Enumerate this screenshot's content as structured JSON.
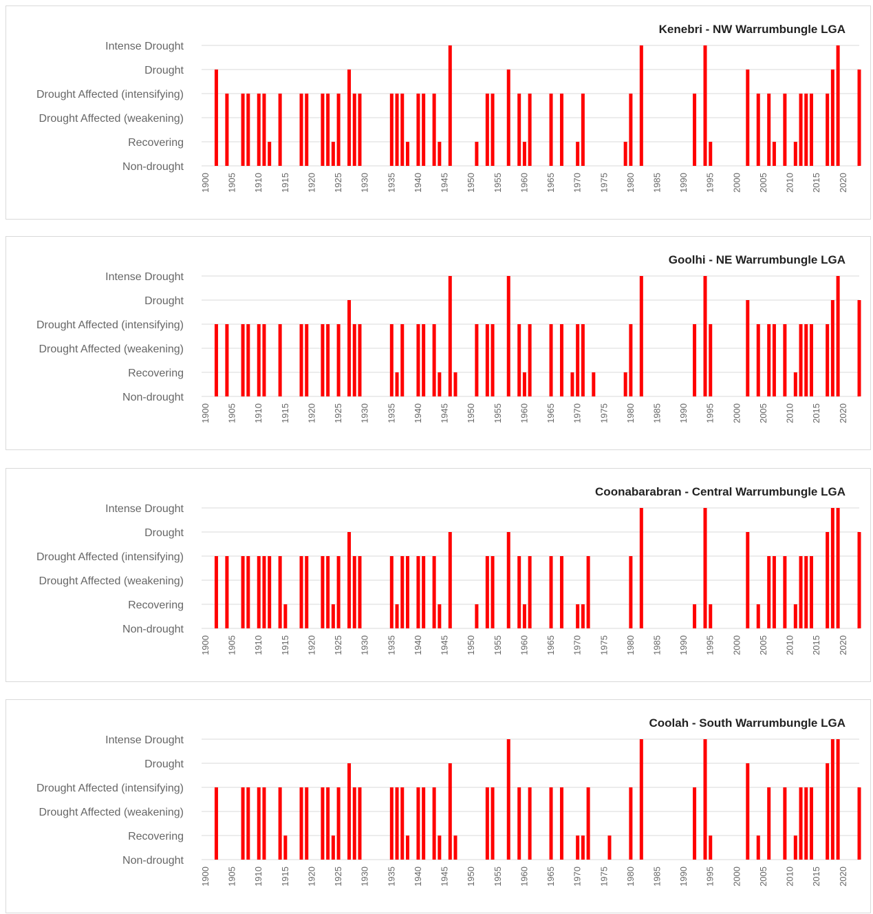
{
  "colors": {
    "bar": "#ff0000",
    "grid": "#d9d9d9",
    "text": "#666666",
    "title": "#222222"
  },
  "chart_data": [
    {
      "type": "bar",
      "title": "Kenebri - NW Warrumbungle LGA",
      "y_categories": [
        "Non-drought",
        "Recovering",
        "Drought Affected (weakening)",
        "Drought Affected (intensifying)",
        "Drought",
        "Intense Drought"
      ],
      "x_ticks": [
        1900,
        1905,
        1910,
        1915,
        1920,
        1925,
        1930,
        1935,
        1940,
        1945,
        1950,
        1955,
        1960,
        1965,
        1970,
        1975,
        1980,
        1985,
        1990,
        1995,
        2000,
        2005,
        2010,
        2015,
        2020
      ],
      "xlim": [
        1900,
        2023
      ],
      "grid": true,
      "points": [
        [
          1902,
          4
        ],
        [
          1904,
          3
        ],
        [
          1907,
          3
        ],
        [
          1908,
          3
        ],
        [
          1910,
          3
        ],
        [
          1911,
          3
        ],
        [
          1912,
          1
        ],
        [
          1914,
          3
        ],
        [
          1918,
          3
        ],
        [
          1919,
          3
        ],
        [
          1922,
          3
        ],
        [
          1923,
          3
        ],
        [
          1924,
          1
        ],
        [
          1925,
          3
        ],
        [
          1927,
          4
        ],
        [
          1928,
          3
        ],
        [
          1929,
          3
        ],
        [
          1935,
          3
        ],
        [
          1936,
          3
        ],
        [
          1937,
          3
        ],
        [
          1938,
          1
        ],
        [
          1940,
          3
        ],
        [
          1941,
          3
        ],
        [
          1943,
          3
        ],
        [
          1944,
          1
        ],
        [
          1946,
          5
        ],
        [
          1951,
          1
        ],
        [
          1953,
          3
        ],
        [
          1954,
          3
        ],
        [
          1957,
          4
        ],
        [
          1959,
          3
        ],
        [
          1960,
          1
        ],
        [
          1961,
          3
        ],
        [
          1965,
          3
        ],
        [
          1967,
          3
        ],
        [
          1970,
          1
        ],
        [
          1971,
          3
        ],
        [
          1979,
          1
        ],
        [
          1980,
          3
        ],
        [
          1982,
          5
        ],
        [
          1992,
          3
        ],
        [
          1994,
          5
        ],
        [
          1995,
          1
        ],
        [
          2002,
          4
        ],
        [
          2004,
          3
        ],
        [
          2006,
          3
        ],
        [
          2007,
          1
        ],
        [
          2009,
          3
        ],
        [
          2011,
          1
        ],
        [
          2012,
          3
        ],
        [
          2013,
          3
        ],
        [
          2014,
          3
        ],
        [
          2017,
          3
        ],
        [
          2018,
          4
        ],
        [
          2019,
          5
        ],
        [
          2023,
          4
        ]
      ]
    },
    {
      "type": "bar",
      "title": "Goolhi - NE Warrumbungle LGA",
      "y_categories": [
        "Non-drought",
        "Recovering",
        "Drought Affected (weakening)",
        "Drought Affected (intensifying)",
        "Drought",
        "Intense Drought"
      ],
      "x_ticks": [
        1900,
        1905,
        1910,
        1915,
        1920,
        1925,
        1930,
        1935,
        1940,
        1945,
        1950,
        1955,
        1960,
        1965,
        1970,
        1975,
        1980,
        1985,
        1990,
        1995,
        2000,
        2005,
        2010,
        2015,
        2020
      ],
      "xlim": [
        1900,
        2023
      ],
      "grid": true,
      "points": [
        [
          1902,
          3
        ],
        [
          1904,
          3
        ],
        [
          1907,
          3
        ],
        [
          1908,
          3
        ],
        [
          1910,
          3
        ],
        [
          1911,
          3
        ],
        [
          1914,
          3
        ],
        [
          1918,
          3
        ],
        [
          1919,
          3
        ],
        [
          1922,
          3
        ],
        [
          1923,
          3
        ],
        [
          1925,
          3
        ],
        [
          1927,
          4
        ],
        [
          1928,
          3
        ],
        [
          1929,
          3
        ],
        [
          1935,
          3
        ],
        [
          1936,
          1
        ],
        [
          1937,
          3
        ],
        [
          1940,
          3
        ],
        [
          1941,
          3
        ],
        [
          1943,
          3
        ],
        [
          1944,
          1
        ],
        [
          1946,
          5
        ],
        [
          1947,
          1
        ],
        [
          1951,
          3
        ],
        [
          1953,
          3
        ],
        [
          1954,
          3
        ],
        [
          1957,
          5
        ],
        [
          1959,
          3
        ],
        [
          1960,
          1
        ],
        [
          1961,
          3
        ],
        [
          1965,
          3
        ],
        [
          1967,
          3
        ],
        [
          1969,
          1
        ],
        [
          1970,
          3
        ],
        [
          1971,
          3
        ],
        [
          1973,
          1
        ],
        [
          1979,
          1
        ],
        [
          1980,
          3
        ],
        [
          1982,
          5
        ],
        [
          1992,
          3
        ],
        [
          1994,
          5
        ],
        [
          1995,
          3
        ],
        [
          2002,
          4
        ],
        [
          2004,
          3
        ],
        [
          2006,
          3
        ],
        [
          2007,
          3
        ],
        [
          2009,
          3
        ],
        [
          2011,
          1
        ],
        [
          2012,
          3
        ],
        [
          2013,
          3
        ],
        [
          2014,
          3
        ],
        [
          2017,
          3
        ],
        [
          2018,
          4
        ],
        [
          2019,
          5
        ],
        [
          2023,
          4
        ]
      ]
    },
    {
      "type": "bar",
      "title": "Coonabarabran  - Central Warrumbungle LGA",
      "y_categories": [
        "Non-drought",
        "Recovering",
        "Drought Affected (weakening)",
        "Drought Affected (intensifying)",
        "Drought",
        "Intense Drought"
      ],
      "x_ticks": [
        1900,
        1905,
        1910,
        1915,
        1920,
        1925,
        1930,
        1935,
        1940,
        1945,
        1950,
        1955,
        1960,
        1965,
        1970,
        1975,
        1980,
        1985,
        1990,
        1995,
        2000,
        2005,
        2010,
        2015,
        2020
      ],
      "xlim": [
        1900,
        2023
      ],
      "grid": true,
      "points": [
        [
          1902,
          3
        ],
        [
          1904,
          3
        ],
        [
          1907,
          3
        ],
        [
          1908,
          3
        ],
        [
          1910,
          3
        ],
        [
          1911,
          3
        ],
        [
          1912,
          3
        ],
        [
          1914,
          3
        ],
        [
          1915,
          1
        ],
        [
          1918,
          3
        ],
        [
          1919,
          3
        ],
        [
          1922,
          3
        ],
        [
          1923,
          3
        ],
        [
          1924,
          1
        ],
        [
          1925,
          3
        ],
        [
          1927,
          4
        ],
        [
          1928,
          3
        ],
        [
          1929,
          3
        ],
        [
          1935,
          3
        ],
        [
          1936,
          1
        ],
        [
          1937,
          3
        ],
        [
          1938,
          3
        ],
        [
          1940,
          3
        ],
        [
          1941,
          3
        ],
        [
          1943,
          3
        ],
        [
          1944,
          1
        ],
        [
          1946,
          4
        ],
        [
          1951,
          1
        ],
        [
          1953,
          3
        ],
        [
          1954,
          3
        ],
        [
          1957,
          4
        ],
        [
          1959,
          3
        ],
        [
          1960,
          1
        ],
        [
          1961,
          3
        ],
        [
          1965,
          3
        ],
        [
          1967,
          3
        ],
        [
          1970,
          1
        ],
        [
          1971,
          1
        ],
        [
          1972,
          3
        ],
        [
          1980,
          3
        ],
        [
          1982,
          5
        ],
        [
          1992,
          1
        ],
        [
          1994,
          5
        ],
        [
          1995,
          1
        ],
        [
          2002,
          4
        ],
        [
          2004,
          1
        ],
        [
          2006,
          3
        ],
        [
          2007,
          3
        ],
        [
          2009,
          3
        ],
        [
          2011,
          1
        ],
        [
          2012,
          3
        ],
        [
          2013,
          3
        ],
        [
          2014,
          3
        ],
        [
          2017,
          4
        ],
        [
          2018,
          5
        ],
        [
          2019,
          5
        ],
        [
          2023,
          4
        ]
      ]
    },
    {
      "type": "bar",
      "title": "Coolah - South Warrumbungle LGA",
      "y_categories": [
        "Non-drought",
        "Recovering",
        "Drought Affected (weakening)",
        "Drought Affected (intensifying)",
        "Drought",
        "Intense Drought"
      ],
      "x_ticks": [
        1900,
        1905,
        1910,
        1915,
        1920,
        1925,
        1930,
        1935,
        1940,
        1945,
        1950,
        1955,
        1960,
        1965,
        1970,
        1975,
        1980,
        1985,
        1990,
        1995,
        2000,
        2005,
        2010,
        2015,
        2020
      ],
      "xlim": [
        1900,
        2023
      ],
      "grid": true,
      "points": [
        [
          1902,
          3
        ],
        [
          1907,
          3
        ],
        [
          1908,
          3
        ],
        [
          1910,
          3
        ],
        [
          1911,
          3
        ],
        [
          1914,
          3
        ],
        [
          1915,
          1
        ],
        [
          1918,
          3
        ],
        [
          1919,
          3
        ],
        [
          1922,
          3
        ],
        [
          1923,
          3
        ],
        [
          1924,
          1
        ],
        [
          1925,
          3
        ],
        [
          1927,
          4
        ],
        [
          1928,
          3
        ],
        [
          1929,
          3
        ],
        [
          1935,
          3
        ],
        [
          1936,
          3
        ],
        [
          1937,
          3
        ],
        [
          1938,
          1
        ],
        [
          1940,
          3
        ],
        [
          1941,
          3
        ],
        [
          1943,
          3
        ],
        [
          1944,
          1
        ],
        [
          1946,
          4
        ],
        [
          1947,
          1
        ],
        [
          1953,
          3
        ],
        [
          1954,
          3
        ],
        [
          1957,
          5
        ],
        [
          1959,
          3
        ],
        [
          1961,
          3
        ],
        [
          1965,
          3
        ],
        [
          1967,
          3
        ],
        [
          1970,
          1
        ],
        [
          1971,
          1
        ],
        [
          1972,
          3
        ],
        [
          1976,
          1
        ],
        [
          1980,
          3
        ],
        [
          1982,
          5
        ],
        [
          1992,
          3
        ],
        [
          1994,
          5
        ],
        [
          1995,
          1
        ],
        [
          2002,
          4
        ],
        [
          2004,
          1
        ],
        [
          2006,
          3
        ],
        [
          2009,
          3
        ],
        [
          2011,
          1
        ],
        [
          2012,
          3
        ],
        [
          2013,
          3
        ],
        [
          2014,
          3
        ],
        [
          2017,
          4
        ],
        [
          2018,
          5
        ],
        [
          2019,
          5
        ],
        [
          2023,
          3
        ]
      ]
    }
  ]
}
